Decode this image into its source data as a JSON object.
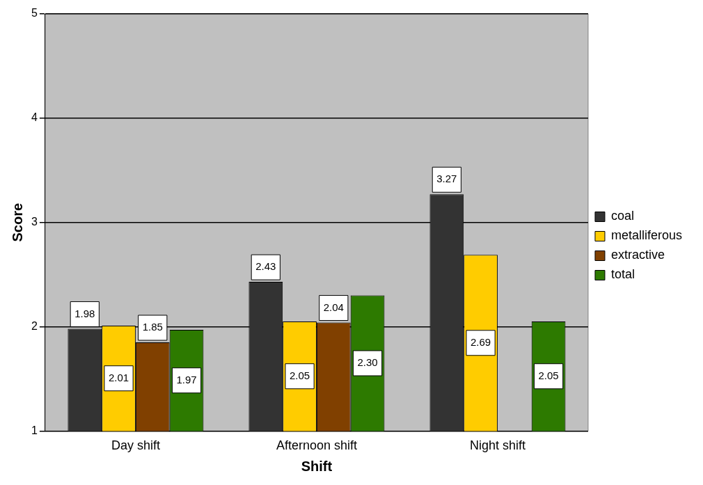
{
  "chart_data": {
    "type": "bar",
    "xlabel": "Shift",
    "ylabel": "Score",
    "categories": [
      "Day shift",
      "Afternoon shift",
      "Night shift"
    ],
    "series": [
      {
        "name": "coal",
        "color": "#333333",
        "values": [
          1.98,
          2.43,
          3.27
        ]
      },
      {
        "name": "metalliferous",
        "color": "#ffcc00",
        "values": [
          2.01,
          2.05,
          2.69
        ]
      },
      {
        "name": "extractive",
        "color": "#804000",
        "values": [
          1.85,
          2.04,
          null
        ]
      },
      {
        "name": "total",
        "color": "#2d7a00",
        "values": [
          1.97,
          2.3,
          2.05
        ]
      }
    ],
    "value_labels": [
      [
        "1.98",
        "2.43",
        "3.27"
      ],
      [
        "2.01",
        "2.05",
        "2.69"
      ],
      [
        "1.85",
        "2.04",
        null
      ],
      [
        "1.97",
        "2.30",
        "2.05"
      ]
    ],
    "ylim": [
      1,
      5
    ],
    "yticks": [
      1,
      2,
      3,
      4,
      5
    ],
    "grid": "y",
    "legend": "right"
  }
}
